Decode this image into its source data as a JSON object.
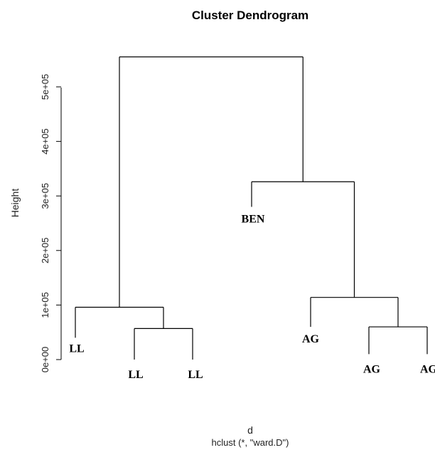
{
  "chart_data": {
    "type": "dendrogram",
    "title": "Cluster Dendrogram",
    "xlabel": "d",
    "sublabel": "hclust (*, \"ward.D\")",
    "ylabel": "Height",
    "ylim": [
      0,
      560000
    ],
    "yticks": [
      0,
      100000,
      200000,
      300000,
      400000,
      500000
    ],
    "ytick_labels": [
      "0e+00",
      "1e+05",
      "2e+05",
      "3e+05",
      "4e+05",
      "5e+05"
    ],
    "leaves": [
      {
        "label": "LL",
        "leaf_height": 40000
      },
      {
        "label": "LL",
        "leaf_height": 0
      },
      {
        "label": "LL",
        "leaf_height": 0
      },
      {
        "label": "BEN",
        "leaf_height": 280000
      },
      {
        "label": "AG",
        "leaf_height": 60000
      },
      {
        "label": "AG",
        "leaf_height": 10000
      },
      {
        "label": "AG",
        "leaf_height": 10000
      }
    ],
    "merges": [
      {
        "id": "m1",
        "left": "leaf:1",
        "right": "leaf:2",
        "height": 57000
      },
      {
        "id": "m2",
        "left": "leaf:0",
        "right": "m1",
        "height": 96000
      },
      {
        "id": "m3",
        "left": "leaf:5",
        "right": "leaf:6",
        "height": 60000
      },
      {
        "id": "m4",
        "left": "leaf:4",
        "right": "m3",
        "height": 114000
      },
      {
        "id": "m5",
        "left": "leaf:3",
        "right": "m4",
        "height": 326000
      },
      {
        "id": "m6",
        "left": "m2",
        "right": "m5",
        "height": 555000
      }
    ]
  }
}
